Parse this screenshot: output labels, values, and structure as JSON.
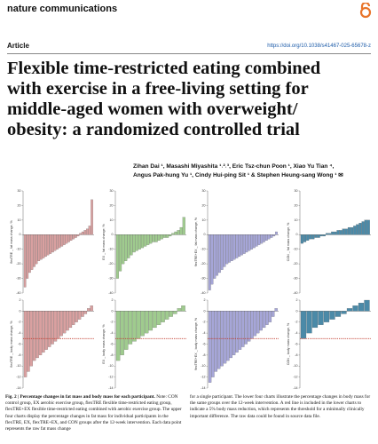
{
  "header": {
    "journal": "nature communications",
    "article_type": "Article",
    "doi": "https://doi.org/10.1038/s41467-025-65678-z"
  },
  "title": [
    "Flexible time-restricted eating combined",
    "with exercise in a free-living setting for",
    "middle-aged women with overweight/",
    "obesity: a randomized controlled trial"
  ],
  "authors": [
    "Zihan Dai ¹, Masashi Miyashita ¹˒²˒³, Eric Tsz-chun Poon ¹, Xiao Yu Tian ⁴,",
    "Angus Pak-hung Yu ¹, Cindy Hui-ping Sit ¹ & Stephen Heung-sang Wong ¹ ✉"
  ],
  "caption": {
    "label": "Fig. 2 | Percentage changes in fat mass and body mass for each participant.",
    "col1": "Note: CON control group, EX aerobic exercise group, flexTRE flexible time-restricted eating group, flexTRE+EX flexible time-restricted eating combined with aerobic exercise group. The upper four charts display the percentage changes in fat mass for individual participants in the flexTRE, EX, flexTRE+EX, and CON groups after the 12-week intervention. Each data point represents the raw fat mass change",
    "col2": "for a single participant. The lower four charts illustrate the percentage changes in body mass for the same groups over the 12-week intervention. A red line is included in the lower charts to indicate a 5% body mass reduction, which represents the threshold for a minimally clinically important difference. The raw data could be found in source data file."
  },
  "chart_data": [
    {
      "type": "bar",
      "ylabel": "flexTRE _ fat mass change, %",
      "color": "#d9a0a0",
      "ylim": [
        -40,
        30
      ],
      "yticks": [
        30,
        20,
        10,
        0,
        -10,
        -20,
        -30,
        -40
      ],
      "values": [
        -36,
        -30,
        -26,
        -24,
        -22,
        -20,
        -18,
        -17,
        -16,
        -15,
        -14,
        -13,
        -12,
        -11,
        -10,
        -9,
        -8,
        -7,
        -6,
        -5,
        -4,
        -3,
        -2,
        -1,
        1,
        2,
        3,
        4,
        6,
        24
      ]
    },
    {
      "type": "bar",
      "ylabel": "EX _ fat mass change, %",
      "color": "#9fcb8e",
      "ylim": [
        -40,
        30
      ],
      "yticks": [
        30,
        20,
        10,
        0,
        -10,
        -20,
        -30,
        -40
      ],
      "values": [
        -30,
        -25,
        -20,
        -18,
        -16,
        -14,
        -12,
        -11,
        -10,
        -9,
        -8,
        -7,
        -6,
        -5,
        -5,
        -4,
        -3,
        -2,
        -2,
        -1,
        1,
        2,
        3,
        5,
        12
      ]
    },
    {
      "type": "bar",
      "ylabel": "flexTRE+EX _ fat mass change, %",
      "color": "#a6a6d8",
      "ylim": [
        -40,
        30
      ],
      "yticks": [
        30,
        20,
        10,
        0,
        -10,
        -20,
        -30,
        -40
      ],
      "values": [
        -38,
        -34,
        -30,
        -28,
        -26,
        -24,
        -22,
        -20,
        -19,
        -18,
        -17,
        -16,
        -15,
        -14,
        -13,
        -12,
        -11,
        -10,
        -9,
        -8,
        -7,
        -6,
        -5,
        -4,
        -3,
        -2,
        -1,
        2
      ]
    },
    {
      "type": "bar",
      "ylabel": "CON _ fat mass change, %",
      "color": "#4b8aa8",
      "ylim": [
        -40,
        30
      ],
      "yticks": [
        30,
        20,
        10,
        0,
        -10,
        -20,
        -30,
        -40
      ],
      "values": [
        -6,
        -5,
        -4,
        -3,
        -3,
        -2,
        -2,
        -1,
        -1,
        1,
        1,
        2,
        2,
        3,
        3,
        4,
        4,
        5,
        5,
        6,
        7,
        8,
        9,
        10,
        10
      ]
    },
    {
      "type": "bar",
      "ylabel": "flexTRE _ body mass change, %",
      "color": "#d9a0a0",
      "ylim": [
        -14,
        2
      ],
      "yticks": [
        2,
        0,
        -2,
        -4,
        -6,
        -8,
        -10,
        -12,
        -14
      ],
      "threshold": -5,
      "threshold_color": "#c0392b",
      "values": [
        -12,
        -11,
        -10,
        -9,
        -8.5,
        -8,
        -7.5,
        -7,
        -6.5,
        -6,
        -5.5,
        -5,
        -4.5,
        -4,
        -3.5,
        -3,
        -2.5,
        -2,
        -1.5,
        -1,
        -0.5,
        0.5,
        1
      ]
    },
    {
      "type": "bar",
      "ylabel": "EX _ body mass change, %",
      "color": "#9fcb8e",
      "ylim": [
        -14,
        2
      ],
      "yticks": [
        2,
        0,
        -2,
        -4,
        -6,
        -8,
        -10,
        -12,
        -14
      ],
      "threshold": -5,
      "threshold_color": "#c0392b",
      "values": [
        -9,
        -8,
        -7,
        -6,
        -5.5,
        -5,
        -4.5,
        -4,
        -3.5,
        -3,
        -2.5,
        -2,
        -1.5,
        -1,
        -0.5,
        0.5,
        1
      ]
    },
    {
      "type": "bar",
      "ylabel": "flexTRE+EX _ body mass change, %",
      "color": "#a6a6d8",
      "ylim": [
        -14,
        2
      ],
      "yticks": [
        2,
        0,
        -2,
        -4,
        -6,
        -8,
        -10,
        -12,
        -14
      ],
      "threshold": -5,
      "threshold_color": "#c0392b",
      "values": [
        -13,
        -12,
        -11,
        -10.5,
        -10,
        -9.5,
        -9,
        -8.5,
        -8,
        -7.5,
        -7,
        -6.5,
        -6,
        -5.5,
        -5,
        -4.5,
        -4,
        -3.5,
        -3,
        -2.5,
        -2,
        -1,
        0.5
      ]
    },
    {
      "type": "bar",
      "ylabel": "CON _ body mass change, %",
      "color": "#4b8aa8",
      "ylim": [
        -14,
        2
      ],
      "yticks": [
        2,
        0,
        -2,
        -4,
        -6,
        -8,
        -10,
        -12,
        -14
      ],
      "threshold": -5,
      "threshold_color": "#c0392b",
      "values": [
        -5,
        -4,
        -3,
        -2.5,
        -2,
        -1.5,
        -1,
        -0.5,
        0.5,
        1,
        1.5,
        2
      ]
    }
  ]
}
